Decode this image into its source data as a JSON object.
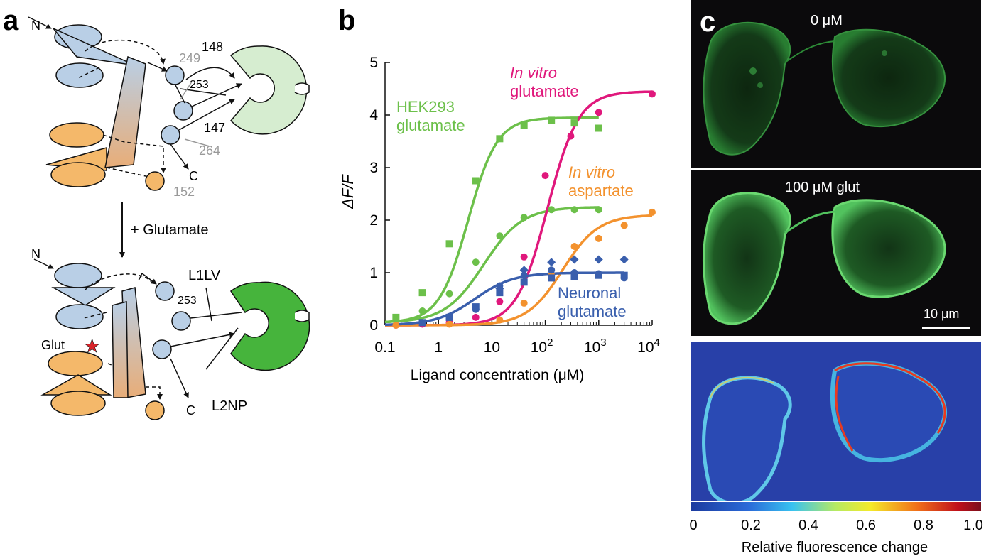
{
  "figure": {
    "panel_a": {
      "letter": "a",
      "top_labels": {
        "n": "N",
        "c": "C",
        "r148": "148",
        "r249": "249",
        "r253": "253",
        "r147": "147",
        "r264": "264",
        "r152": "152"
      },
      "arrow_label": "+ Glutamate",
      "bottom_labels": {
        "n": "N",
        "c": "C",
        "r253": "253",
        "l1lv": "L1LV",
        "l2np": "L2NP",
        "glut": "Glut"
      }
    },
    "panel_b": {
      "letter": "b"
    },
    "panel_c": {
      "letter": "c",
      "top_label": "0 μM",
      "middle_label": "100 μM glut",
      "scale_bar": "10 μm",
      "colorbar_ticks": [
        "0",
        "0.2",
        "0.4",
        "0.6",
        "0.8",
        "1.0"
      ],
      "colorbar_label": "Relative fluorescence change"
    }
  },
  "chart_data": {
    "type": "scatter",
    "xlabel": "Ligand concentration (μM)",
    "ylabel": "ΔF/F",
    "xscale": "log",
    "xlim": [
      0.1,
      10000
    ],
    "ylim": [
      0,
      5
    ],
    "x_ticks": [
      0.1,
      1,
      10,
      100,
      1000,
      10000
    ],
    "x_tick_labels": [
      {
        "base": "0.1",
        "exp": ""
      },
      {
        "base": "1",
        "exp": ""
      },
      {
        "base": "10",
        "exp": ""
      },
      {
        "base": "10",
        "exp": "2"
      },
      {
        "base": "10",
        "exp": "3"
      },
      {
        "base": "10",
        "exp": "4"
      }
    ],
    "y_ticks": [
      0,
      1,
      2,
      3,
      4,
      5
    ],
    "series": [
      {
        "id": "hek_square",
        "label_lines": [
          "HEK293",
          "glutamate"
        ],
        "label_italic": false,
        "color": "#6cc04a",
        "marker": "square",
        "x": [
          0.16,
          0.5,
          1.6,
          5,
          14,
          40,
          130,
          350,
          1000
        ],
        "y": [
          0.15,
          0.62,
          1.55,
          2.75,
          3.55,
          3.8,
          3.9,
          3.85,
          3.75
        ],
        "fit": {
          "bottom": 0.05,
          "top": 3.95,
          "ec50": 3.6,
          "hill": 1.6
        }
      },
      {
        "id": "hek_circle",
        "color": "#6cc04a",
        "marker": "circle",
        "x": [
          0.16,
          0.5,
          1.6,
          5,
          14,
          40,
          130,
          350,
          1000
        ],
        "y": [
          0.1,
          0.27,
          0.6,
          1.2,
          1.7,
          2.05,
          2.2,
          2.2,
          2.2
        ],
        "fit": {
          "bottom": 0.05,
          "top": 2.25,
          "ec50": 7,
          "hill": 1.2
        }
      },
      {
        "id": "invitro_glu",
        "label_lines": [
          "In vitro",
          "glutamate"
        ],
        "label_italic": true,
        "color": "#e0187c",
        "marker": "circle",
        "x": [
          0.16,
          0.5,
          1.6,
          5,
          14,
          40,
          100,
          300,
          1000,
          10000
        ],
        "y": [
          0.0,
          0.02,
          0.05,
          0.15,
          0.45,
          1.3,
          2.85,
          3.6,
          4.05,
          4.4
        ],
        "fit": {
          "bottom": 0.0,
          "top": 4.45,
          "ec50": 110,
          "hill": 1.5
        }
      },
      {
        "id": "invitro_asp",
        "label_lines": [
          "In vitro",
          "aspartate"
        ],
        "label_italic": true,
        "color": "#f3922e",
        "marker": "circle",
        "x": [
          0.16,
          1.6,
          14,
          40,
          130,
          350,
          1000,
          3000,
          10000
        ],
        "y": [
          0.0,
          0.02,
          0.1,
          0.42,
          0.95,
          1.5,
          1.65,
          1.9,
          2.15
        ],
        "fit": {
          "bottom": 0.0,
          "top": 2.1,
          "ec50": 210,
          "hill": 1.3
        }
      },
      {
        "id": "neuron_square",
        "label_lines": [
          "Neuronal",
          "glutamate"
        ],
        "label_italic": false,
        "color": "#3a5fad",
        "marker": "square",
        "x": [
          0.5,
          1.6,
          5,
          14,
          40,
          130,
          350,
          1000,
          3000
        ],
        "y": [
          0.05,
          0.15,
          0.35,
          0.62,
          0.82,
          0.9,
          0.93,
          0.95,
          0.95
        ],
        "fit": {
          "bottom": 0.0,
          "top": 1.0,
          "ec50": 4.8,
          "hill": 1.2
        }
      },
      {
        "id": "neuron_circle",
        "color": "#3a5fad",
        "marker": "circle",
        "x": [
          1.6,
          5,
          14,
          40,
          130,
          350,
          1000,
          3000
        ],
        "y": [
          0.15,
          0.3,
          0.75,
          0.95,
          1.05,
          1.0,
          0.98,
          0.9
        ],
        "fit": null
      },
      {
        "id": "neuron_diamond",
        "color": "#3a5fad",
        "marker": "diamond",
        "x": [
          14,
          40,
          130,
          350,
          1000,
          3000
        ],
        "y": [
          0.7,
          1.05,
          1.2,
          1.25,
          1.25,
          1.25
        ],
        "fit": null
      }
    ]
  }
}
